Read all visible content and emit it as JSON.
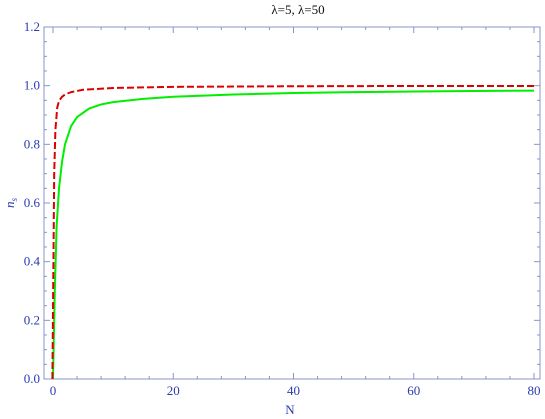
{
  "chart_data": {
    "type": "line",
    "title": "λ=5, λ=50",
    "xlabel": "N",
    "ylabel": "n",
    "ylabel_sub": "s",
    "xlim": [
      0,
      80
    ],
    "ylim": [
      0,
      1.2
    ],
    "x_ticks": [
      0,
      20,
      40,
      60,
      80
    ],
    "x_tick_labels": [
      "0",
      "20",
      "40",
      "60",
      "80"
    ],
    "y_ticks": [
      0,
      0.2,
      0.4,
      0.6,
      0.8,
      1.0,
      1.2
    ],
    "y_tick_labels": [
      "0.0",
      "0.2",
      "0.4",
      "0.6",
      "0.8",
      "1.0",
      "1.2"
    ],
    "grid": false,
    "series": [
      {
        "color": "#00ee00",
        "dash": "solid",
        "x": [
          0.0,
          0.3,
          0.6,
          1,
          1.5,
          2,
          3,
          4,
          6,
          8,
          10,
          15,
          20,
          30,
          40,
          50,
          60,
          70,
          80
        ],
        "y": [
          0.0,
          0.3,
          0.52,
          0.65,
          0.74,
          0.8,
          0.862,
          0.893,
          0.922,
          0.936,
          0.944,
          0.955,
          0.962,
          0.97,
          0.975,
          0.978,
          0.98,
          0.982,
          0.983
        ]
      },
      {
        "color": "#dd0000",
        "dash": "dashed",
        "x": [
          -0.1,
          0.2,
          0.4,
          0.7,
          1,
          1.5,
          2,
          3,
          5,
          10,
          20,
          40,
          60,
          80
        ],
        "y": [
          0.0,
          0.7,
          0.85,
          0.925,
          0.948,
          0.962,
          0.97,
          0.978,
          0.986,
          0.992,
          0.996,
          0.998,
          0.999,
          0.999
        ]
      }
    ]
  }
}
